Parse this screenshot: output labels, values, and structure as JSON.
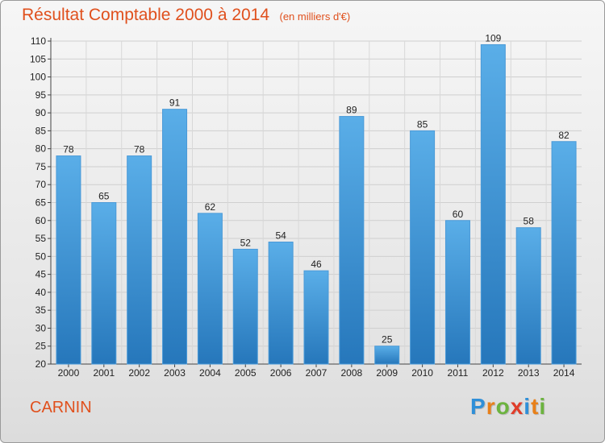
{
  "header": {
    "title": "Résultat Comptable 2000 à 2014",
    "subtitle": "(en milliers d'€)"
  },
  "commune": "CARNIN",
  "logo": {
    "text": "Proxiti",
    "letters": [
      "P",
      "r",
      "o",
      "x",
      "i",
      "t",
      "i"
    ],
    "colors": [
      "#2f8fd8",
      "#e8801a",
      "#6cb33f",
      "#e03d2a",
      "#2f8fd8",
      "#e8801a",
      "#6cb33f"
    ]
  },
  "colors": {
    "bar_top": "#5aaee8",
    "bar_bottom": "#2677bb",
    "title": "#e0501d"
  },
  "chart_data": {
    "type": "bar",
    "title": "Résultat Comptable 2000 à 2014",
    "subtitle": "(en milliers d'€)",
    "categories": [
      "2000",
      "2001",
      "2002",
      "2003",
      "2004",
      "2005",
      "2006",
      "2007",
      "2008",
      "2009",
      "2010",
      "2011",
      "2012",
      "2013",
      "2014"
    ],
    "values": [
      78,
      65,
      78,
      91,
      62,
      52,
      54,
      46,
      89,
      25,
      85,
      60,
      109,
      58,
      82
    ],
    "ylim": [
      20,
      110
    ],
    "yticks": [
      20,
      25,
      30,
      35,
      40,
      45,
      50,
      55,
      60,
      65,
      70,
      75,
      80,
      85,
      90,
      95,
      100,
      105,
      110
    ],
    "grid": true,
    "xlabel": "",
    "ylabel": ""
  }
}
